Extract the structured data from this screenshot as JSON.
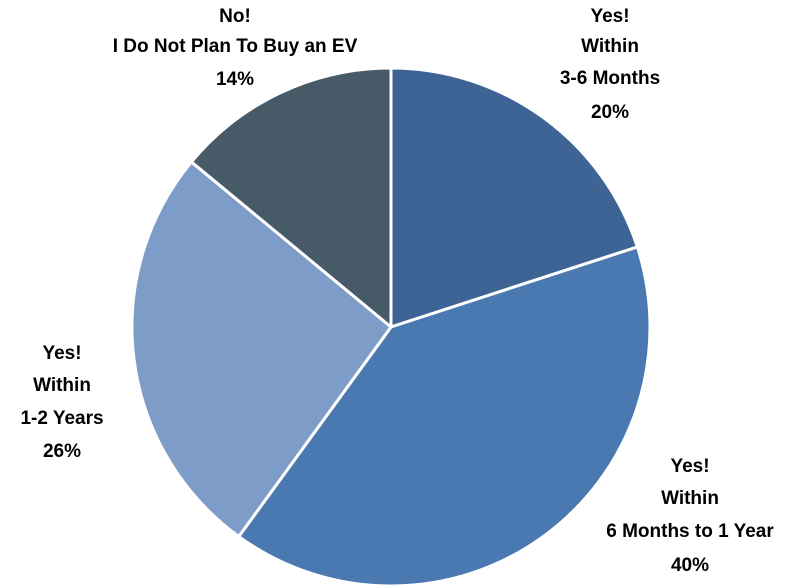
{
  "chart_data": {
    "type": "pie",
    "categories": [
      [
        "Yes!",
        "Within",
        "3-6 Months"
      ],
      [
        "Yes!",
        "Within",
        "6 Months to 1 Year"
      ],
      [
        "Yes!",
        "Within",
        "1-2 Years"
      ],
      [
        "No!",
        "I Do Not Plan To Buy an EV"
      ]
    ],
    "values": [
      20,
      40,
      26,
      14
    ],
    "value_labels": [
      "20%",
      "40%",
      "26%",
      "14%"
    ],
    "colors": [
      "#3e6496",
      "#4a78b0",
      "#7e9cc8",
      "#465a68"
    ]
  }
}
